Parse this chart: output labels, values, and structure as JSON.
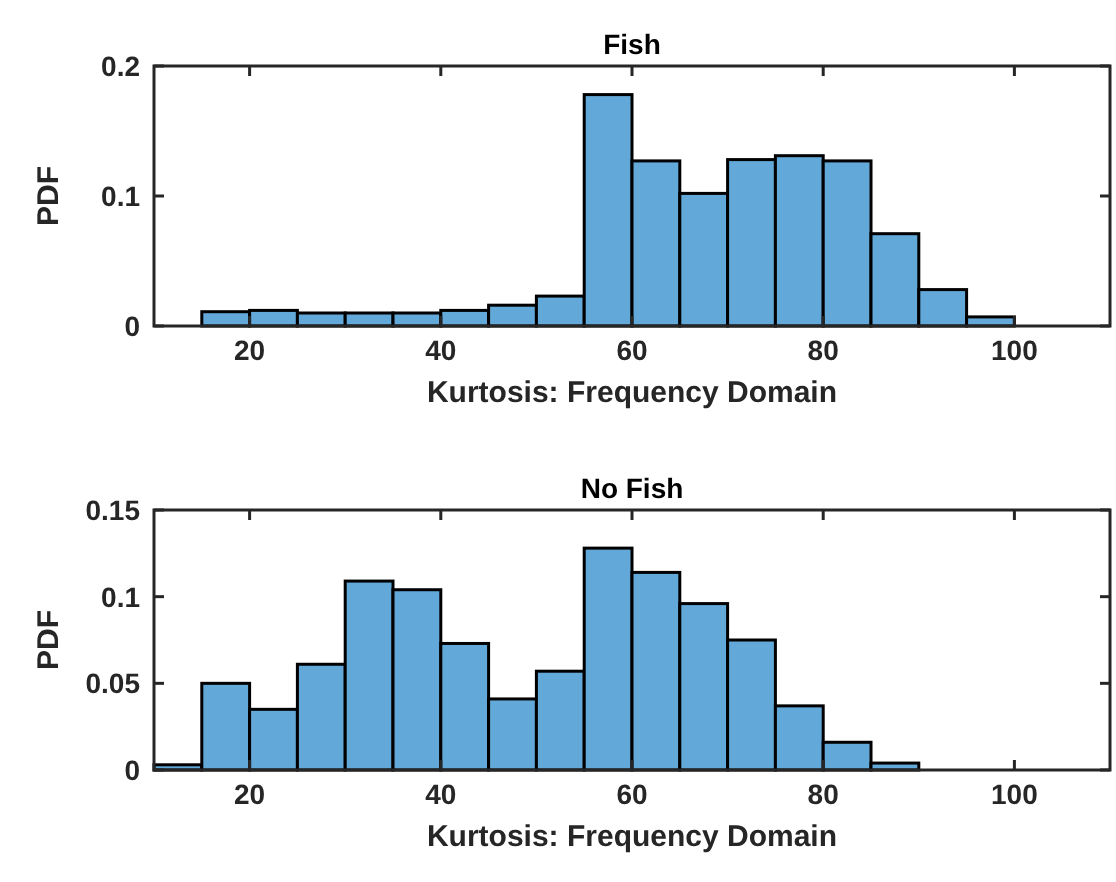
{
  "chart_data": [
    {
      "type": "histogram",
      "title": "Fish",
      "xlabel": "Kurtosis: Frequency Domain",
      "ylabel": "PDF",
      "color": "#62a9d9",
      "bins": [
        15,
        20,
        25,
        30,
        35,
        40,
        45,
        50,
        55,
        60,
        65,
        70,
        75,
        80,
        85,
        90,
        95,
        100
      ],
      "values": [
        0.011,
        0.012,
        0.01,
        0.01,
        0.01,
        0.012,
        0.016,
        0.023,
        0.178,
        0.127,
        0.102,
        0.128,
        0.131,
        0.127,
        0.071,
        0.028,
        0.007
      ],
      "xlim": [
        10,
        110
      ],
      "xticks": [
        20,
        40,
        60,
        80,
        100
      ],
      "ylim": [
        0,
        0.2
      ],
      "yticks": [
        0,
        0.1,
        0.2
      ],
      "grid": false
    },
    {
      "type": "histogram",
      "title": "No Fish",
      "xlabel": "Kurtosis: Frequency Domain",
      "ylabel": "PDF",
      "color": "#62a9d9",
      "bins": [
        10,
        15,
        20,
        25,
        30,
        35,
        40,
        45,
        50,
        55,
        60,
        65,
        70,
        75,
        80,
        85,
        90
      ],
      "values": [
        0.003,
        0.05,
        0.035,
        0.061,
        0.109,
        0.104,
        0.073,
        0.041,
        0.057,
        0.128,
        0.114,
        0.096,
        0.075,
        0.037,
        0.016,
        0.004
      ],
      "xlim": [
        10,
        110
      ],
      "xticks": [
        20,
        40,
        60,
        80,
        100
      ],
      "ylim": [
        0,
        0.15
      ],
      "yticks": [
        0,
        0.05,
        0.1,
        0.15
      ],
      "grid": false
    }
  ]
}
